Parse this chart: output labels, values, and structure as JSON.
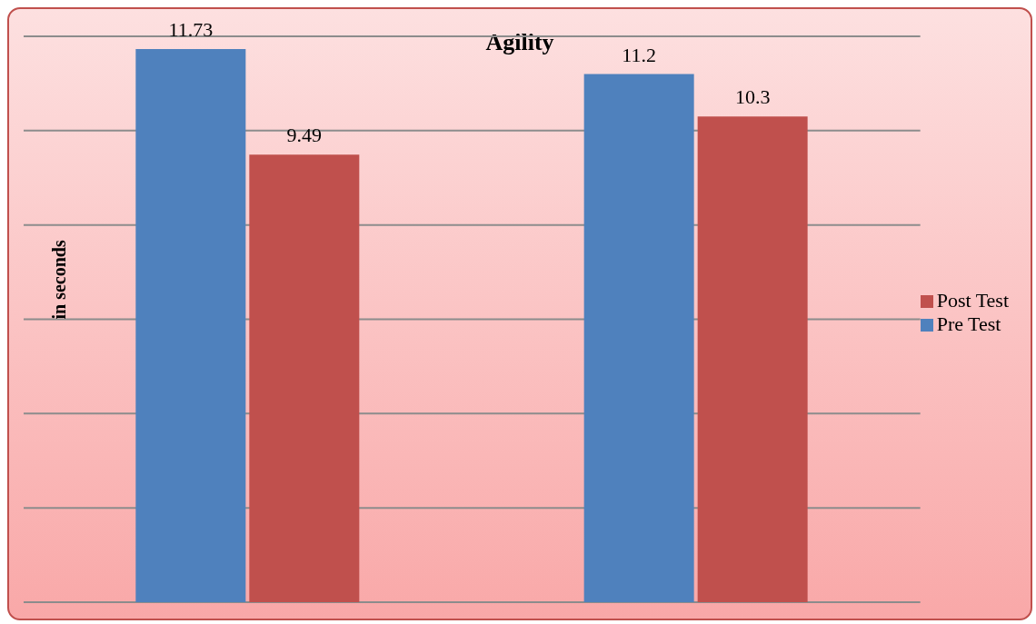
{
  "chart_data": {
    "type": "bar",
    "title": "Agility",
    "ylabel": "in seconds",
    "categories": [
      null,
      null
    ],
    "series": [
      {
        "name": "Pre Test",
        "color": "#4f81bd",
        "values": [
          11.73,
          11.2
        ]
      },
      {
        "name": "Post Test",
        "color": "#c0504d",
        "values": [
          9.49,
          10.3
        ]
      }
    ],
    "ylim": [
      0,
      12
    ],
    "yticks": [
      {
        "value": 0,
        "label": null
      },
      {
        "value": 2,
        "label": null
      },
      {
        "value": 4,
        "label": null
      },
      {
        "value": 6,
        "label": null
      },
      {
        "value": 8,
        "label": null
      },
      {
        "value": 10,
        "label": null
      },
      {
        "value": 12,
        "label": null
      }
    ],
    "grid": "y",
    "legend": "right",
    "data_labels": true
  }
}
